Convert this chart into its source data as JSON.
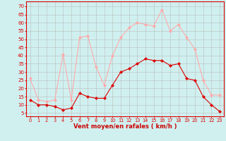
{
  "hours": [
    0,
    1,
    2,
    3,
    4,
    5,
    6,
    7,
    8,
    9,
    10,
    11,
    12,
    13,
    14,
    15,
    16,
    17,
    18,
    19,
    20,
    21,
    22,
    23
  ],
  "avg_wind": [
    13,
    10,
    10,
    9,
    7,
    8,
    17,
    15,
    14,
    14,
    22,
    30,
    32,
    35,
    38,
    37,
    37,
    34,
    35,
    26,
    25,
    15,
    10,
    6
  ],
  "gust_wind": [
    26,
    13,
    12,
    13,
    41,
    13,
    51,
    52,
    33,
    22,
    40,
    51,
    57,
    60,
    59,
    58,
    68,
    55,
    59,
    51,
    44,
    25,
    16,
    16
  ],
  "avg_color": "#dd0000",
  "gust_color": "#ffaaaa",
  "bg_color": "#d0f0f0",
  "grid_color": "#bbbbbb",
  "xlabel": "Vent moyen/en rafales ( km/h )",
  "xlabel_color": "#cc0000",
  "yticks": [
    5,
    10,
    15,
    20,
    25,
    30,
    35,
    40,
    45,
    50,
    55,
    60,
    65,
    70
  ],
  "ylim": [
    3,
    73
  ],
  "xlim": [
    -0.5,
    23.5
  ],
  "tick_color": "#dd0000",
  "axis_color": "#dd0000"
}
